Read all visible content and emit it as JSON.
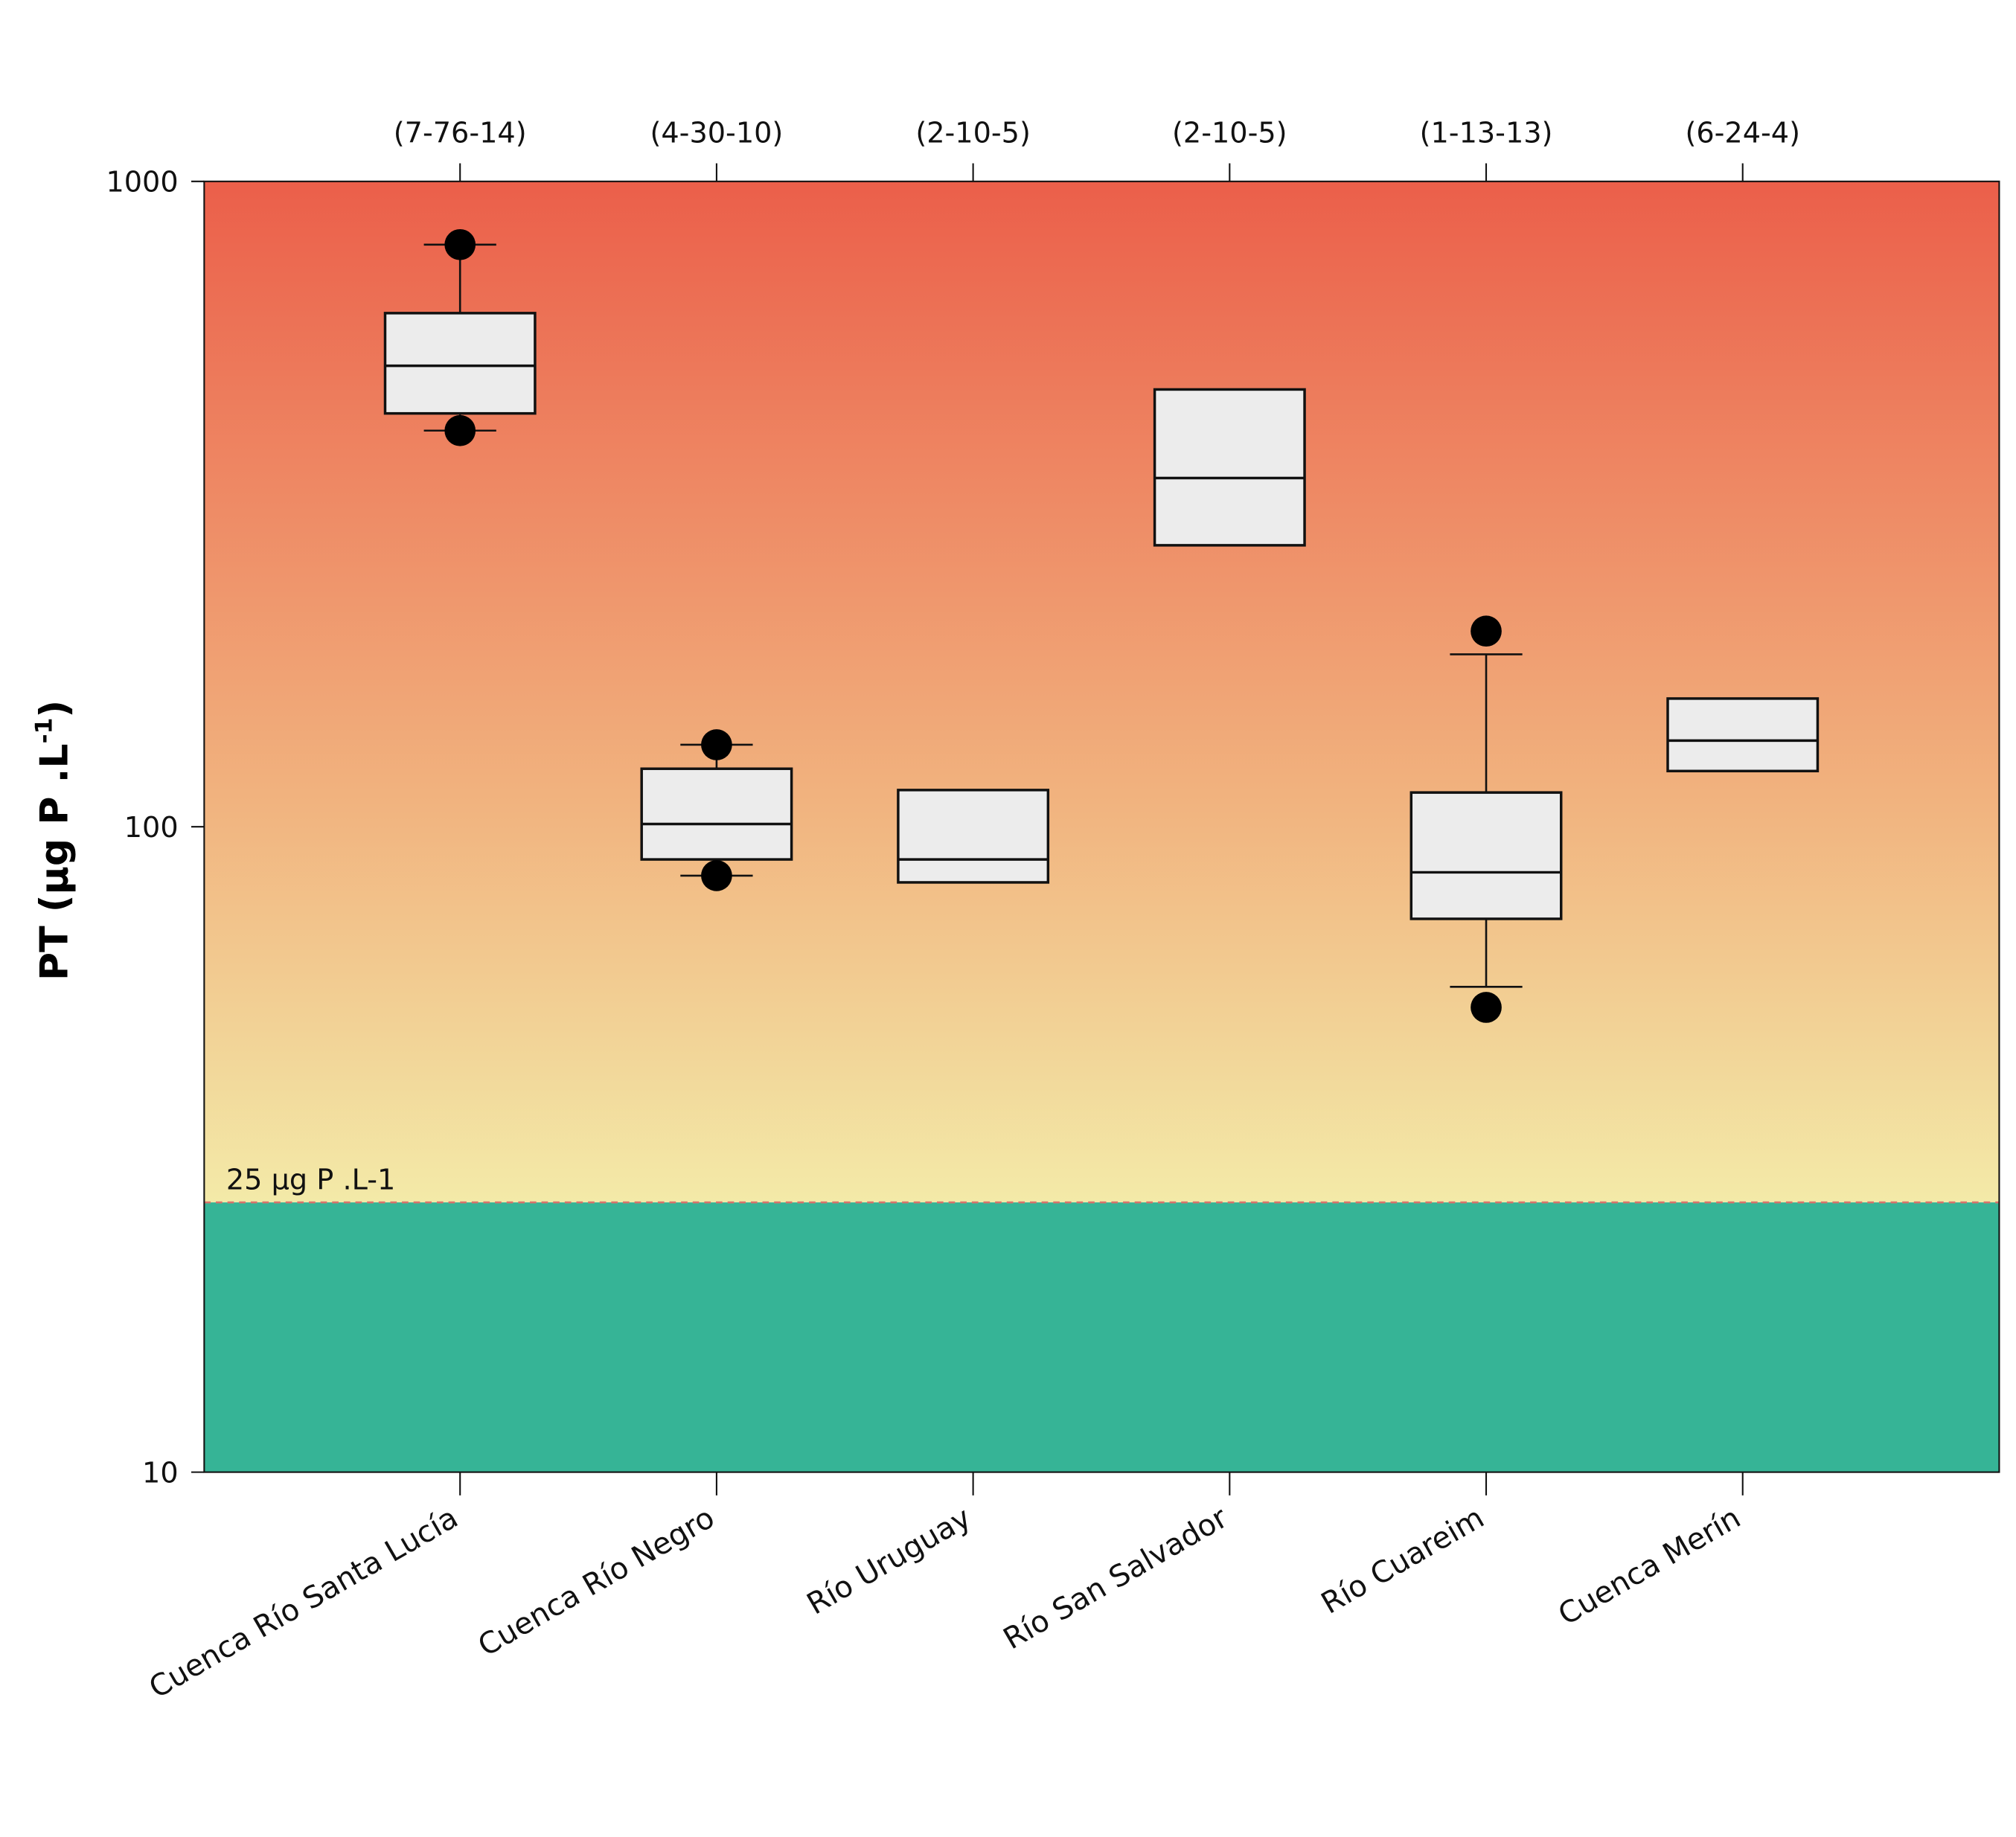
{
  "chart_data": {
    "type": "boxplot",
    "ylabel": "PT (µg P .L",
    "ylabel_sup": "-1",
    "ylabel_close": ")",
    "yscale": "log",
    "ylim": [
      10,
      1000
    ],
    "yticks": [
      "10",
      "100",
      "1000"
    ],
    "ytick_values": [
      10,
      100,
      1000
    ],
    "threshold": {
      "value": 25,
      "label": "25 µg P .L-1"
    },
    "colors": {
      "top": "#eb5f4a",
      "mid": "#f1b27e",
      "low": "#f3eaa8",
      "below_threshold": "#36b496",
      "box": "#ececec"
    },
    "categories": [
      "Cuenca Río Santa Lucía",
      "Cuenca Río Negro",
      "Río Uruguay",
      "Río San Salvador",
      "Río Cuareim",
      "Cuenca Merín"
    ],
    "top_labels": [
      "(7-76-14)",
      "(4-30-10)",
      "(2-10-5)",
      "(2-10-5)",
      "(1-13-13)",
      "(6-24-4)"
    ],
    "boxes": [
      {
        "q1": 437,
        "median": 518,
        "q3": 625,
        "whisker_low": 411,
        "whisker_high": 798,
        "outliers": [
          411,
          798
        ]
      },
      {
        "q1": 89,
        "median": 101,
        "q3": 123,
        "whisker_low": 84,
        "whisker_high": 134,
        "outliers": [
          84,
          134
        ]
      },
      {
        "q1": 82,
        "median": 89,
        "q3": 114,
        "whisker_low": null,
        "whisker_high": null,
        "outliers": []
      },
      {
        "q1": 273,
        "median": 347,
        "q3": 476,
        "whisker_low": null,
        "whisker_high": null,
        "outliers": []
      },
      {
        "q1": 72,
        "median": 85,
        "q3": 113,
        "whisker_low": 56.5,
        "whisker_high": 185,
        "outliers": [
          52.5,
          201
        ]
      },
      {
        "q1": 122,
        "median": 136,
        "q3": 158,
        "whisker_low": null,
        "whisker_high": null,
        "outliers": []
      }
    ]
  }
}
